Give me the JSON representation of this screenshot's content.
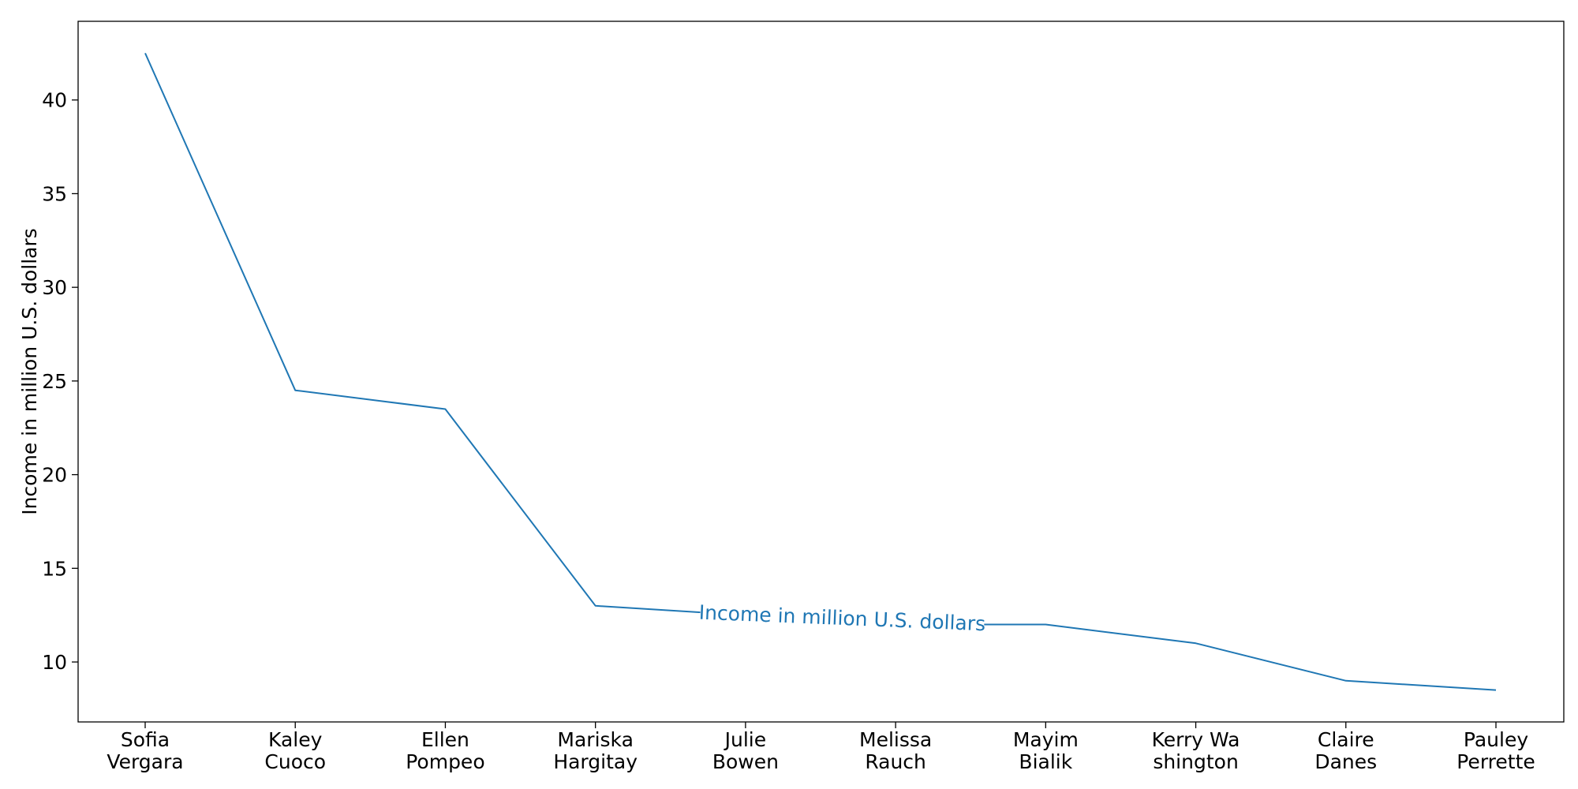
{
  "chart_data": {
    "type": "line",
    "title": "",
    "xlabel": "",
    "ylabel": "Income in million U.S. dollars",
    "categories": [
      [
        "Sofia",
        "Vergara"
      ],
      [
        "Kaley",
        "Cuoco"
      ],
      [
        "Ellen",
        "Pompeo"
      ],
      [
        "Mariska",
        "Hargitay"
      ],
      [
        "Julie",
        "Bowen"
      ],
      [
        "Melissa",
        "Rauch"
      ],
      [
        "Mayim",
        "Bialik"
      ],
      [
        "Kerry Wa",
        "shington"
      ],
      [
        "Claire",
        "Danes"
      ],
      [
        "Pauley",
        "Perrette"
      ]
    ],
    "series": [
      {
        "name": "Income in million U.S. dollars",
        "color": "#1f77b4",
        "values": [
          42.5,
          24.5,
          23.5,
          13,
          12.5,
          12,
          12,
          11,
          9,
          8.5
        ]
      }
    ],
    "ylim": [
      6.8,
      44.2
    ],
    "yticks": [
      10,
      15,
      20,
      25,
      30,
      35,
      40
    ],
    "grid": false,
    "legend": "none"
  }
}
